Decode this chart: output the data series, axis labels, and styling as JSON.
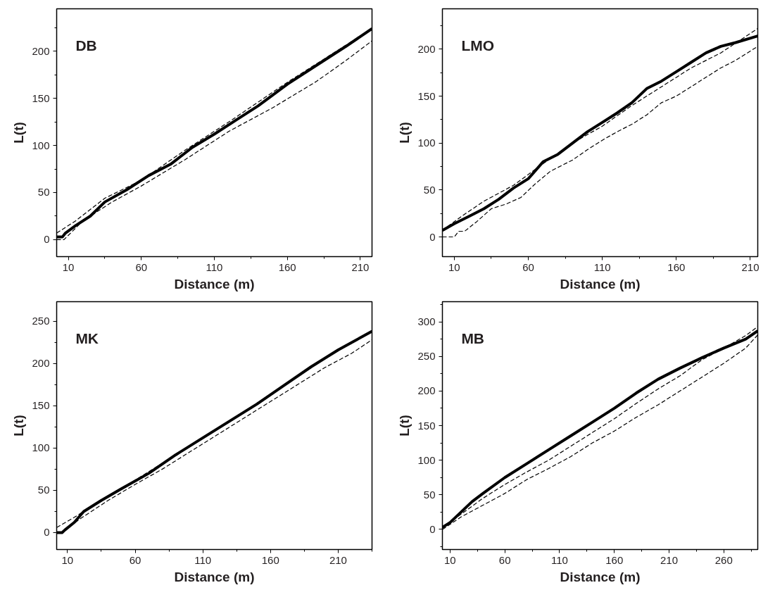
{
  "chart_data": [
    {
      "type": "line",
      "title": "DB",
      "xlabel": "Distance (m)",
      "ylabel": "L(t)",
      "xlim": [
        2,
        218
      ],
      "ylim": [
        -18,
        245
      ],
      "xticks": [
        10,
        60,
        110,
        160,
        210
      ],
      "yticks": [
        0,
        50,
        100,
        150,
        200
      ],
      "grid": false,
      "series": [
        {
          "color": "#000000",
          "line_style": "solid",
          "x": [
            2,
            6,
            8,
            15,
            25,
            35,
            50,
            65,
            80,
            95,
            110,
            125,
            140,
            160,
            180,
            200,
            218
          ],
          "values": [
            3,
            3,
            7,
            15,
            25,
            40,
            53,
            68,
            80,
            98,
            112,
            127,
            142,
            165,
            185,
            205,
            224
          ]
        },
        {
          "color": "#000000",
          "line_style": "dashed",
          "x": [
            2,
            15,
            35,
            60,
            90,
            120,
            160,
            218
          ],
          "values": [
            7,
            20,
            44,
            63,
            95,
            125,
            167,
            224
          ]
        },
        {
          "color": "#000000",
          "line_style": "dashed",
          "x": [
            2,
            7,
            20,
            40,
            60,
            90,
            120,
            150,
            180,
            200,
            218
          ],
          "values": [
            0,
            0,
            20,
            40,
            57,
            85,
            115,
            140,
            168,
            190,
            211
          ]
        }
      ]
    },
    {
      "type": "line",
      "title": "LMO",
      "xlabel": "Distance (m)",
      "ylabel": "L(t)",
      "xlim": [
        2,
        215
      ],
      "ylim": [
        -21,
        243
      ],
      "xticks": [
        10,
        60,
        110,
        160,
        210
      ],
      "yticks": [
        0,
        50,
        100,
        150,
        200
      ],
      "grid": false,
      "series": [
        {
          "color": "#000000",
          "line_style": "solid",
          "x": [
            2,
            10,
            20,
            30,
            40,
            50,
            60,
            70,
            80,
            90,
            100,
            110,
            120,
            130,
            140,
            150,
            160,
            170,
            180,
            190,
            200,
            215
          ],
          "values": [
            7,
            14,
            22,
            30,
            40,
            52,
            62,
            80,
            88,
            100,
            112,
            122,
            132,
            143,
            158,
            166,
            176,
            186,
            196,
            203,
            207,
            214
          ]
        },
        {
          "color": "#000000",
          "line_style": "dashed",
          "x": [
            2,
            15,
            30,
            50,
            70,
            90,
            110,
            130,
            150,
            170,
            190,
            215
          ],
          "values": [
            7,
            22,
            38,
            55,
            78,
            100,
            118,
            140,
            160,
            180,
            196,
            222
          ]
        },
        {
          "color": "#000000",
          "line_style": "dashed",
          "x": [
            2,
            10,
            13,
            17,
            25,
            35,
            45,
            55,
            65,
            75,
            90,
            100,
            110,
            120,
            130,
            140,
            150,
            160,
            170,
            180,
            190,
            200,
            215
          ],
          "values": [
            0,
            0,
            6,
            6,
            16,
            30,
            35,
            42,
            57,
            70,
            82,
            93,
            103,
            112,
            120,
            130,
            143,
            150,
            160,
            170,
            180,
            188,
            203
          ]
        }
      ]
    },
    {
      "type": "line",
      "title": "MK",
      "xlabel": "Distance (m)",
      "ylabel": "L(t)",
      "xlim": [
        2,
        235
      ],
      "ylim": [
        -20,
        273
      ],
      "xticks": [
        10,
        60,
        110,
        160,
        210
      ],
      "yticks": [
        0,
        50,
        100,
        150,
        200,
        250
      ],
      "grid": false,
      "series": [
        {
          "color": "#000000",
          "line_style": "solid",
          "x": [
            2,
            6,
            8,
            15,
            22,
            35,
            50,
            70,
            90,
            110,
            130,
            150,
            170,
            190,
            210,
            235
          ],
          "values": [
            0,
            0,
            3,
            12,
            25,
            38,
            52,
            70,
            92,
            112,
            132,
            152,
            174,
            196,
            216,
            238
          ]
        },
        {
          "color": "#000000",
          "line_style": "dashed",
          "x": [
            2,
            15,
            22,
            50,
            90,
            130,
            170,
            210,
            235
          ],
          "values": [
            6,
            18,
            25,
            52,
            92,
            132,
            174,
            216,
            238
          ]
        },
        {
          "color": "#000000",
          "line_style": "dashed",
          "x": [
            8,
            20,
            40,
            60,
            80,
            100,
            120,
            140,
            160,
            180,
            200,
            220,
            235
          ],
          "values": [
            3,
            17,
            38,
            57,
            75,
            95,
            115,
            135,
            155,
            175,
            195,
            212,
            228
          ]
        }
      ]
    },
    {
      "type": "line",
      "title": "MB",
      "xlabel": "Distance (m)",
      "ylabel": "L(t)",
      "xlim": [
        3,
        291
      ],
      "ylim": [
        -29,
        329
      ],
      "xticks": [
        10,
        60,
        110,
        160,
        210,
        260
      ],
      "yticks": [
        0,
        50,
        100,
        150,
        200,
        250,
        300
      ],
      "grid": false,
      "series": [
        {
          "color": "#000000",
          "line_style": "solid",
          "x": [
            3,
            10,
            20,
            30,
            40,
            60,
            80,
            100,
            120,
            140,
            160,
            180,
            200,
            220,
            240,
            260,
            280,
            291
          ],
          "values": [
            3,
            10,
            25,
            40,
            52,
            75,
            95,
            115,
            135,
            155,
            175,
            197,
            217,
            233,
            248,
            262,
            275,
            287
          ]
        },
        {
          "color": "#000000",
          "line_style": "dashed",
          "x": [
            3,
            20,
            40,
            60,
            80,
            100,
            120,
            140,
            160,
            180,
            200,
            220,
            240,
            260,
            280,
            291
          ],
          "values": [
            3,
            22,
            45,
            65,
            83,
            100,
            120,
            140,
            160,
            182,
            203,
            222,
            245,
            262,
            280,
            293
          ]
        },
        {
          "color": "#000000",
          "line_style": "dashed",
          "x": [
            3,
            20,
            40,
            60,
            80,
            100,
            120,
            140,
            160,
            180,
            200,
            220,
            240,
            260,
            280,
            291
          ],
          "values": [
            0,
            18,
            35,
            52,
            72,
            88,
            105,
            125,
            142,
            162,
            180,
            200,
            220,
            240,
            262,
            281
          ]
        }
      ]
    }
  ]
}
